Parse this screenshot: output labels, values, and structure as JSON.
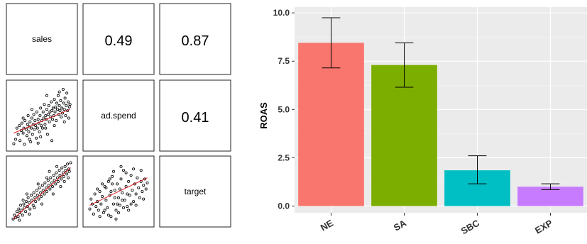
{
  "chart_data": [
    {
      "type": "scatter",
      "title": "",
      "variables": [
        "sales",
        "ad.spend",
        "target"
      ],
      "correlations": [
        {
          "row": "sales",
          "col": "ad.spend",
          "value": "0.49"
        },
        {
          "row": "sales",
          "col": "target",
          "value": "0.87"
        },
        {
          "row": "ad.spend",
          "col": "target",
          "value": "0.41"
        }
      ],
      "fit_line_color": "#e31a1c",
      "point_color": "#000000",
      "panels": [
        {
          "name": "ad.spend-vs-sales",
          "x_var": "sales",
          "y_var": "ad.spend",
          "xlim": [
            0,
            1
          ],
          "ylim": [
            0,
            1
          ],
          "fit": [
            [
              0.05,
              0.22
            ],
            [
              0.95,
              0.6
            ]
          ],
          "points": [
            [
              0.05,
              0.05
            ],
            [
              0.08,
              0.12
            ],
            [
              0.1,
              0.3
            ],
            [
              0.12,
              0.2
            ],
            [
              0.14,
              0.34
            ],
            [
              0.15,
              0.1
            ],
            [
              0.17,
              0.26
            ],
            [
              0.18,
              0.38
            ],
            [
              0.2,
              0.22
            ],
            [
              0.21,
              0.3
            ],
            [
              0.22,
              0.04
            ],
            [
              0.23,
              0.42
            ],
            [
              0.25,
              0.28
            ],
            [
              0.26,
              0.18
            ],
            [
              0.27,
              0.36
            ],
            [
              0.28,
              0.5
            ],
            [
              0.29,
              0.24
            ],
            [
              0.3,
              0.32
            ],
            [
              0.31,
              0.4
            ],
            [
              0.32,
              0.08
            ],
            [
              0.33,
              0.3
            ],
            [
              0.34,
              0.46
            ],
            [
              0.35,
              0.2
            ],
            [
              0.36,
              0.36
            ],
            [
              0.37,
              0.52
            ],
            [
              0.38,
              0.28
            ],
            [
              0.39,
              0.42
            ],
            [
              0.4,
              0.34
            ],
            [
              0.41,
              0.14
            ],
            [
              0.42,
              0.56
            ],
            [
              0.43,
              0.3
            ],
            [
              0.44,
              0.44
            ],
            [
              0.45,
              0.38
            ],
            [
              0.46,
              0.24
            ],
            [
              0.47,
              0.5
            ],
            [
              0.48,
              0.62
            ],
            [
              0.49,
              0.34
            ],
            [
              0.5,
              0.42
            ],
            [
              0.51,
              0.3
            ],
            [
              0.52,
              0.56
            ],
            [
              0.53,
              0.46
            ],
            [
              0.54,
              0.68
            ],
            [
              0.55,
              0.36
            ],
            [
              0.56,
              0.5
            ],
            [
              0.57,
              0.44
            ],
            [
              0.58,
              0.6
            ],
            [
              0.59,
              0.2
            ],
            [
              0.6,
              0.52
            ],
            [
              0.61,
              0.66
            ],
            [
              0.62,
              0.4
            ],
            [
              0.63,
              0.56
            ],
            [
              0.64,
              0.48
            ],
            [
              0.65,
              0.72
            ],
            [
              0.66,
              0.58
            ],
            [
              0.67,
              0.44
            ],
            [
              0.68,
              0.62
            ],
            [
              0.69,
              0.5
            ],
            [
              0.7,
              0.76
            ],
            [
              0.71,
              0.56
            ],
            [
              0.72,
              0.64
            ],
            [
              0.73,
              0.42
            ],
            [
              0.74,
              0.7
            ],
            [
              0.75,
              0.6
            ],
            [
              0.76,
              0.82
            ],
            [
              0.77,
              0.52
            ],
            [
              0.78,
              0.66
            ],
            [
              0.79,
              0.58
            ],
            [
              0.8,
              0.74
            ],
            [
              0.81,
              0.48
            ],
            [
              0.82,
              0.62
            ],
            [
              0.83,
              0.54
            ],
            [
              0.84,
              0.92
            ],
            [
              0.85,
              0.7
            ],
            [
              0.86,
              0.6
            ],
            [
              0.87,
              0.78
            ],
            [
              0.88,
              0.5
            ],
            [
              0.89,
              0.66
            ],
            [
              0.9,
              0.86
            ],
            [
              0.91,
              0.58
            ],
            [
              0.92,
              0.72
            ],
            [
              0.93,
              0.46
            ],
            [
              0.94,
              0.64
            ],
            [
              0.95,
              0.68
            ],
            [
              0.66,
              0.1
            ],
            [
              0.48,
              0.16
            ],
            [
              0.34,
              0.6
            ],
            [
              0.58,
              0.82
            ],
            [
              0.78,
              0.88
            ],
            [
              0.2,
              0.46
            ],
            [
              0.3,
              0.12
            ],
            [
              0.44,
              0.06
            ],
            [
              0.56,
              0.3
            ],
            [
              0.7,
              0.34
            ],
            [
              0.86,
              0.4
            ]
          ]
        },
        {
          "name": "target-vs-sales",
          "x_var": "sales",
          "y_var": "target",
          "xlim": [
            0,
            1
          ],
          "ylim": [
            0,
            1
          ],
          "fit": [
            [
              0.04,
              0.06
            ],
            [
              0.96,
              0.88
            ]
          ],
          "points": [
            [
              0.04,
              0.06
            ],
            [
              0.06,
              0.12
            ],
            [
              0.08,
              0.08
            ],
            [
              0.1,
              0.18
            ],
            [
              0.12,
              0.1
            ],
            [
              0.13,
              0.22
            ],
            [
              0.15,
              0.16
            ],
            [
              0.16,
              0.28
            ],
            [
              0.18,
              0.2
            ],
            [
              0.19,
              0.12
            ],
            [
              0.21,
              0.3
            ],
            [
              0.22,
              0.24
            ],
            [
              0.24,
              0.18
            ],
            [
              0.25,
              0.34
            ],
            [
              0.27,
              0.26
            ],
            [
              0.28,
              0.4
            ],
            [
              0.3,
              0.32
            ],
            [
              0.31,
              0.22
            ],
            [
              0.33,
              0.44
            ],
            [
              0.34,
              0.36
            ],
            [
              0.36,
              0.28
            ],
            [
              0.37,
              0.48
            ],
            [
              0.39,
              0.4
            ],
            [
              0.4,
              0.34
            ],
            [
              0.42,
              0.52
            ],
            [
              0.43,
              0.44
            ],
            [
              0.45,
              0.38
            ],
            [
              0.46,
              0.56
            ],
            [
              0.48,
              0.48
            ],
            [
              0.49,
              0.42
            ],
            [
              0.51,
              0.6
            ],
            [
              0.52,
              0.52
            ],
            [
              0.54,
              0.46
            ],
            [
              0.55,
              0.64
            ],
            [
              0.57,
              0.56
            ],
            [
              0.58,
              0.5
            ],
            [
              0.6,
              0.68
            ],
            [
              0.61,
              0.6
            ],
            [
              0.63,
              0.54
            ],
            [
              0.64,
              0.72
            ],
            [
              0.66,
              0.64
            ],
            [
              0.67,
              0.58
            ],
            [
              0.69,
              0.76
            ],
            [
              0.7,
              0.68
            ],
            [
              0.72,
              0.62
            ],
            [
              0.73,
              0.8
            ],
            [
              0.75,
              0.72
            ],
            [
              0.76,
              0.66
            ],
            [
              0.78,
              0.84
            ],
            [
              0.79,
              0.76
            ],
            [
              0.81,
              0.7
            ],
            [
              0.82,
              0.88
            ],
            [
              0.84,
              0.8
            ],
            [
              0.85,
              0.74
            ],
            [
              0.87,
              0.9
            ],
            [
              0.88,
              0.84
            ],
            [
              0.9,
              0.78
            ],
            [
              0.91,
              0.94
            ],
            [
              0.93,
              0.86
            ],
            [
              0.94,
              0.82
            ],
            [
              0.96,
              0.96
            ],
            [
              0.2,
              0.36
            ],
            [
              0.3,
              0.14
            ],
            [
              0.44,
              0.62
            ],
            [
              0.5,
              0.3
            ],
            [
              0.62,
              0.82
            ],
            [
              0.68,
              0.46
            ],
            [
              0.74,
              0.9
            ],
            [
              0.8,
              0.58
            ],
            [
              0.86,
              0.66
            ],
            [
              0.58,
              0.72
            ],
            [
              0.38,
              0.24
            ],
            [
              0.26,
              0.46
            ],
            [
              0.14,
              0.04
            ],
            [
              0.92,
              0.72
            ]
          ]
        },
        {
          "name": "target-vs-ad.spend",
          "x_var": "ad.spend",
          "y_var": "target",
          "xlim": [
            0,
            1
          ],
          "ylim": [
            0,
            1
          ],
          "fit": [
            [
              0.04,
              0.28
            ],
            [
              0.96,
              0.72
            ]
          ],
          "points": [
            [
              0.04,
              0.22
            ],
            [
              0.06,
              0.38
            ],
            [
              0.08,
              0.3
            ],
            [
              0.1,
              0.14
            ],
            [
              0.12,
              0.46
            ],
            [
              0.14,
              0.26
            ],
            [
              0.16,
              0.34
            ],
            [
              0.18,
              0.2
            ],
            [
              0.2,
              0.5
            ],
            [
              0.22,
              0.3
            ],
            [
              0.24,
              0.42
            ],
            [
              0.26,
              0.16
            ],
            [
              0.28,
              0.58
            ],
            [
              0.3,
              0.36
            ],
            [
              0.32,
              0.24
            ],
            [
              0.34,
              0.66
            ],
            [
              0.36,
              0.44
            ],
            [
              0.38,
              0.1
            ],
            [
              0.4,
              0.74
            ],
            [
              0.42,
              0.3
            ],
            [
              0.44,
              0.52
            ],
            [
              0.46,
              0.2
            ],
            [
              0.48,
              0.62
            ],
            [
              0.5,
              0.4
            ],
            [
              0.52,
              0.28
            ],
            [
              0.54,
              0.7
            ],
            [
              0.56,
              0.48
            ],
            [
              0.58,
              0.84
            ],
            [
              0.6,
              0.36
            ],
            [
              0.62,
              0.58
            ],
            [
              0.64,
              0.26
            ],
            [
              0.66,
              0.66
            ],
            [
              0.68,
              0.44
            ],
            [
              0.7,
              0.76
            ],
            [
              0.72,
              0.52
            ],
            [
              0.74,
              0.34
            ],
            [
              0.76,
              0.62
            ],
            [
              0.78,
              0.46
            ],
            [
              0.8,
              0.72
            ],
            [
              0.82,
              0.56
            ],
            [
              0.84,
              0.4
            ],
            [
              0.86,
              0.66
            ],
            [
              0.88,
              0.5
            ],
            [
              0.9,
              0.6
            ],
            [
              0.92,
              0.7
            ],
            [
              0.94,
              0.54
            ],
            [
              0.96,
              0.64
            ],
            [
              0.3,
              0.56
            ],
            [
              0.36,
              0.7
            ],
            [
              0.42,
              0.82
            ],
            [
              0.46,
              0.06
            ],
            [
              0.5,
              0.16
            ],
            [
              0.54,
              0.9
            ],
            [
              0.38,
              0.5
            ],
            [
              0.44,
              0.4
            ],
            [
              0.48,
              0.3
            ],
            [
              0.52,
              0.54
            ],
            [
              0.58,
              0.24
            ],
            [
              0.62,
              0.8
            ],
            [
              0.66,
              0.2
            ],
            [
              0.2,
              0.1
            ],
            [
              0.24,
              0.62
            ],
            [
              0.7,
              0.3
            ],
            [
              0.74,
              0.86
            ],
            [
              0.78,
              0.28
            ],
            [
              0.86,
              0.84
            ],
            [
              0.9,
              0.38
            ],
            [
              0.16,
              0.54
            ],
            [
              0.4,
              0.62
            ],
            [
              0.56,
              0.36
            ],
            [
              0.64,
              0.46
            ],
            [
              0.34,
              0.12
            ],
            [
              0.28,
              0.2
            ]
          ]
        }
      ]
    },
    {
      "type": "bar",
      "title": "",
      "xlabel": "",
      "ylabel": "ROAS",
      "categories": [
        "NE",
        "SA",
        "SBC",
        "EXP"
      ],
      "values": [
        8.45,
        7.3,
        1.85,
        1.0
      ],
      "error_low": [
        7.15,
        6.15,
        1.15,
        0.85
      ],
      "error_high": [
        9.75,
        8.45,
        2.6,
        1.15
      ],
      "colors": [
        "#F8766D",
        "#7CAE00",
        "#00BFC4",
        "#C77CFF"
      ],
      "ylim": [
        -0.35,
        10.3
      ],
      "yticks": [
        0,
        2.5,
        5,
        7.5,
        10
      ],
      "ytick_labels": [
        "0.0",
        "2.5",
        "5.0",
        "7.5",
        "10.0"
      ],
      "grid": true,
      "background": "#EBEBEB",
      "legend": "none"
    }
  ]
}
